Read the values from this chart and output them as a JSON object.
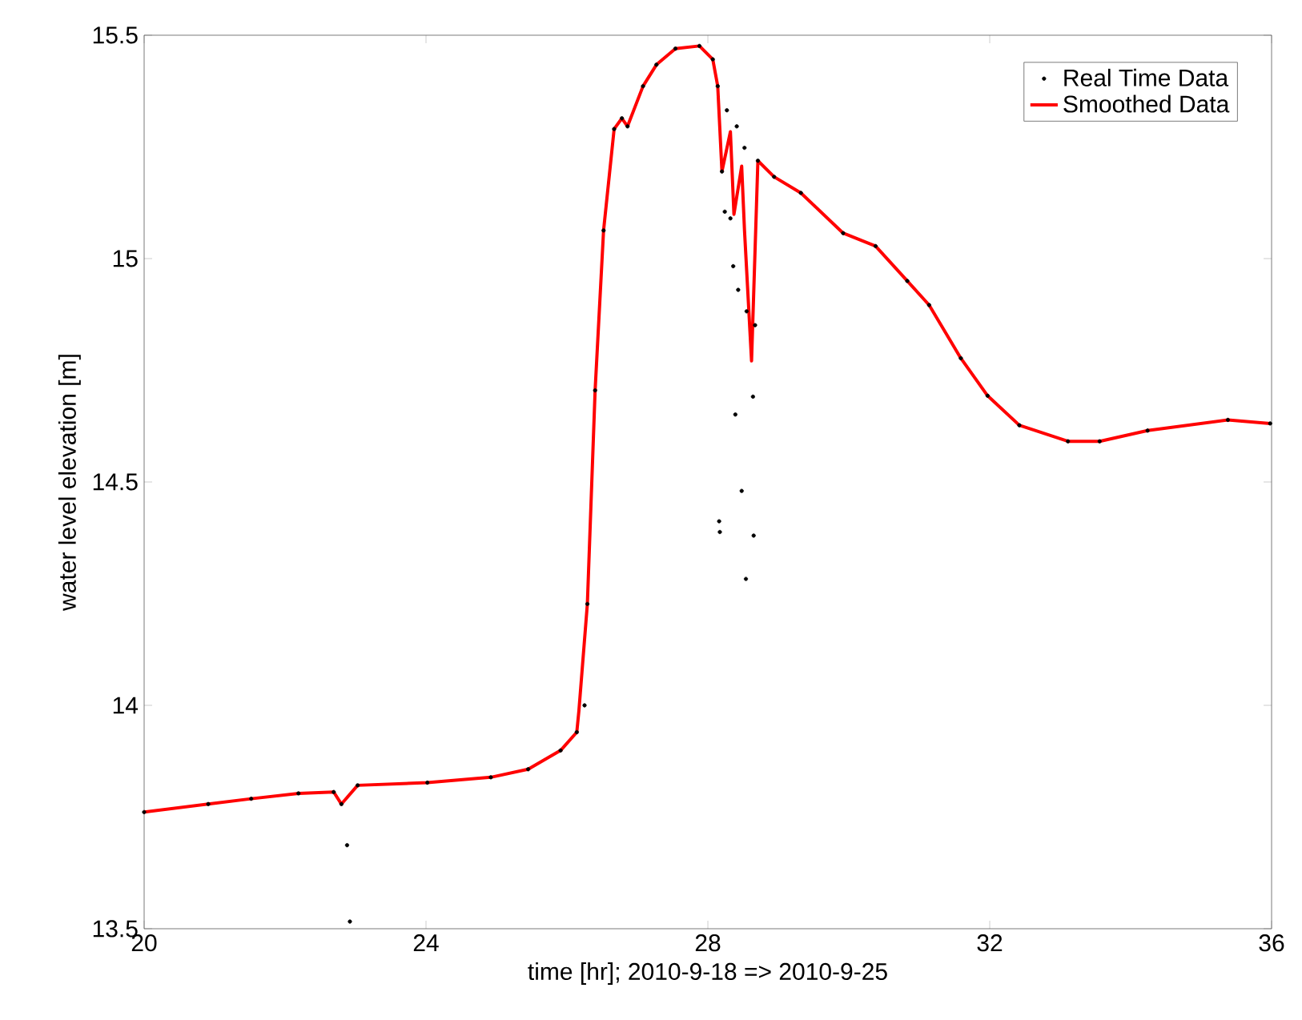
{
  "chart_data": {
    "type": "line",
    "xlabel": "time [hr]; 2010-9-18 => 2010-9-25",
    "ylabel": "water level elevation [m]",
    "xlim": [
      20,
      36
    ],
    "ylim": [
      13.5,
      15.5
    ],
    "xticks": [
      20,
      24,
      28,
      32,
      36
    ],
    "yticks": [
      13.5,
      14,
      14.5,
      15,
      15.5
    ],
    "grid": false,
    "legend": "top right",
    "series": [
      {
        "name": "Real Time Data",
        "type": "scatter",
        "marker": "circle",
        "color": "#000000",
        "x": [
          20,
          20.91,
          21.52,
          22.19,
          22.69,
          22.8,
          22.88,
          22.92,
          23.03,
          24.02,
          24.92,
          25.45,
          25.91,
          26.14,
          26.25,
          26.29,
          26.4,
          26.52,
          26.67,
          26.78,
          26.86,
          27.08,
          27.27,
          27.54,
          27.88,
          28.07,
          28.14,
          28.16,
          28.17,
          28.2,
          28.24,
          28.27,
          28.32,
          28.36,
          28.39,
          28.41,
          28.43,
          28.48,
          28.52,
          28.54,
          28.55,
          28.64,
          28.65,
          28.67,
          28.71,
          28.94,
          29.32,
          29.92,
          30.38,
          30.83,
          31.14,
          31.59,
          31.97,
          32.42,
          33.11,
          33.56,
          34.24,
          35.38,
          35.98
        ],
        "values": [
          13.761,
          13.779,
          13.791,
          13.803,
          13.806,
          13.779,
          13.687,
          13.516,
          13.821,
          13.827,
          13.839,
          13.857,
          13.899,
          13.94,
          14.0,
          14.227,
          14.705,
          15.063,
          15.29,
          15.314,
          15.296,
          15.386,
          15.434,
          15.47,
          15.476,
          15.446,
          15.386,
          14.412,
          14.388,
          15.195,
          15.105,
          15.332,
          15.09,
          14.983,
          14.651,
          15.296,
          14.93,
          14.48,
          15.248,
          14.283,
          14.882,
          14.691,
          14.38,
          14.851,
          15.219,
          15.183,
          15.147,
          15.057,
          15.028,
          14.95,
          14.896,
          14.777,
          14.693,
          14.627,
          14.591,
          14.591,
          14.615,
          14.639,
          14.631
        ]
      },
      {
        "name": "Smoothed Data",
        "type": "line",
        "color": "#ff0000",
        "x": [
          20,
          20.91,
          21.52,
          22.19,
          22.69,
          22.8,
          23.03,
          24.02,
          24.92,
          25.45,
          25.91,
          26.14,
          26.17,
          26.29,
          26.4,
          26.52,
          26.67,
          26.78,
          26.86,
          27.08,
          27.27,
          27.54,
          27.88,
          28.07,
          28.14,
          28.2,
          28.32,
          28.37,
          28.48,
          28.52,
          28.62,
          28.71,
          28.94,
          29.32,
          29.92,
          30.38,
          30.83,
          31.14,
          31.59,
          31.97,
          32.42,
          33.11,
          33.56,
          34.24,
          35.38,
          35.98
        ],
        "values": [
          13.761,
          13.779,
          13.791,
          13.803,
          13.806,
          13.779,
          13.821,
          13.827,
          13.839,
          13.857,
          13.899,
          13.94,
          13.988,
          14.227,
          14.705,
          15.063,
          15.29,
          15.314,
          15.296,
          15.386,
          15.434,
          15.47,
          15.476,
          15.446,
          15.386,
          15.195,
          15.284,
          15.099,
          15.207,
          15.063,
          14.771,
          15.219,
          15.183,
          15.147,
          15.057,
          15.028,
          14.95,
          14.896,
          14.777,
          14.693,
          14.627,
          14.591,
          14.591,
          14.615,
          14.639,
          14.631
        ]
      }
    ]
  }
}
